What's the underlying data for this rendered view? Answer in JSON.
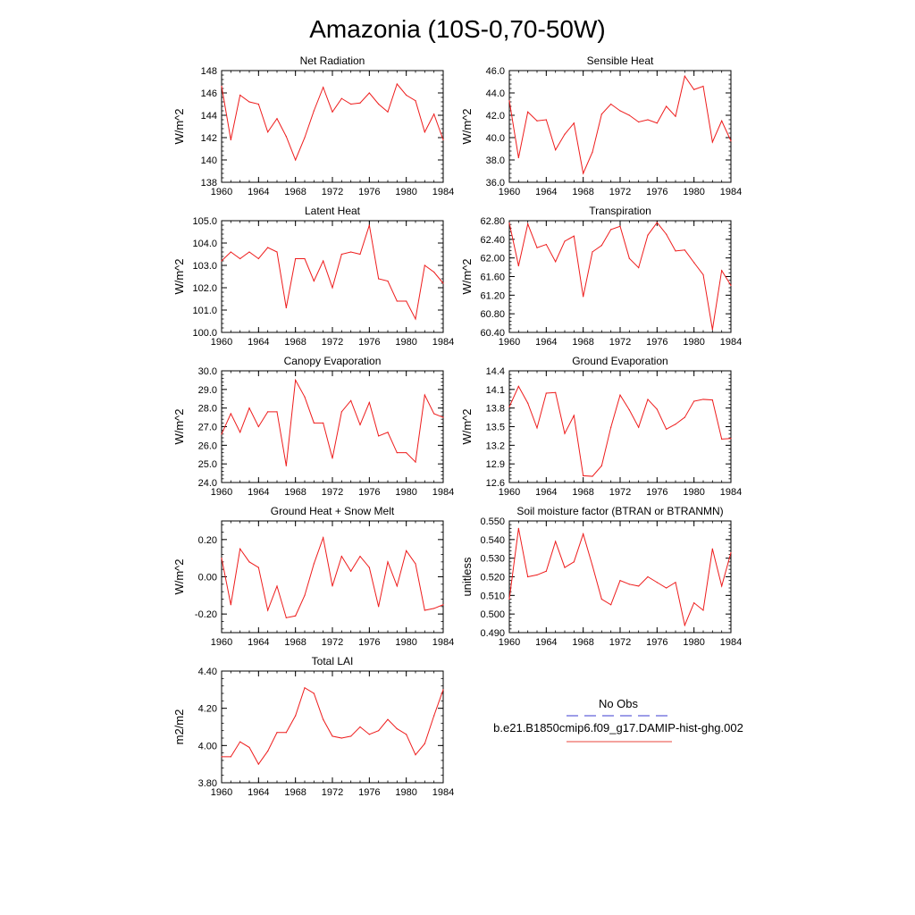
{
  "figure": {
    "title": "Amazonia (10S-0,70-50W)"
  },
  "legend": {
    "obs_label": "No Obs",
    "obs_color": "#3b3bd0",
    "model_label": "b.e21.B1850cmip6.f09_g17.DAMIP-hist-ghg.002",
    "model_color": "#e8463c"
  },
  "series_color": "#ee1c1c",
  "chart_data": [
    {
      "type": "line",
      "title": "Net Radiation",
      "ylabel": "W/m^2",
      "xlim": [
        1960,
        1984
      ],
      "ylim": [
        138,
        148
      ],
      "yticks": [
        138,
        140,
        142,
        144,
        146,
        148
      ],
      "ytick_labels": [
        "138",
        "140",
        "142",
        "144",
        "146",
        "148"
      ],
      "xticks": [
        1960,
        1964,
        1968,
        1972,
        1976,
        1980,
        1984
      ],
      "xtick_labels": [
        "1960",
        "1964",
        "1968",
        "1972",
        "1976",
        "1980",
        "1984"
      ],
      "x": [
        1960,
        1961,
        1962,
        1963,
        1964,
        1965,
        1966,
        1967,
        1968,
        1969,
        1970,
        1971,
        1972,
        1973,
        1974,
        1975,
        1976,
        1977,
        1978,
        1979,
        1980,
        1981,
        1982,
        1983,
        1984
      ],
      "values": [
        146.6,
        141.8,
        145.8,
        145.2,
        145.0,
        142.5,
        143.7,
        142.1,
        140.0,
        142.0,
        144.4,
        146.5,
        144.3,
        145.5,
        145.0,
        145.1,
        146.0,
        145.0,
        144.3,
        146.8,
        145.8,
        145.3,
        142.5,
        144.1,
        141.8
      ]
    },
    {
      "type": "line",
      "title": "Sensible Heat",
      "ylabel": "W/m^2",
      "xlim": [
        1960,
        1984
      ],
      "ylim": [
        36.0,
        46.0
      ],
      "yticks": [
        36,
        38,
        40,
        42,
        44,
        46
      ],
      "ytick_labels": [
        "36.0",
        "38.0",
        "40.0",
        "42.0",
        "44.0",
        "46.0"
      ],
      "xticks": [
        1960,
        1964,
        1968,
        1972,
        1976,
        1980,
        1984
      ],
      "xtick_labels": [
        "1960",
        "1964",
        "1968",
        "1972",
        "1976",
        "1980",
        "1984"
      ],
      "x": [
        1960,
        1961,
        1962,
        1963,
        1964,
        1965,
        1966,
        1967,
        1968,
        1969,
        1970,
        1971,
        1972,
        1973,
        1974,
        1975,
        1976,
        1977,
        1978,
        1979,
        1980,
        1981,
        1982,
        1983,
        1984
      ],
      "values": [
        43.3,
        38.2,
        42.3,
        41.5,
        41.6,
        38.9,
        40.3,
        41.3,
        36.8,
        38.7,
        42.1,
        43.0,
        42.4,
        42.0,
        41.4,
        41.6,
        41.3,
        42.8,
        41.9,
        45.5,
        44.3,
        44.6,
        39.6,
        41.5,
        39.7
      ]
    },
    {
      "type": "line",
      "title": "Latent Heat",
      "ylabel": "W/m^2",
      "xlim": [
        1960,
        1984
      ],
      "ylim": [
        100.0,
        105.0
      ],
      "yticks": [
        100,
        101,
        102,
        103,
        104,
        105
      ],
      "ytick_labels": [
        "100.0",
        "101.0",
        "102.0",
        "103.0",
        "104.0",
        "105.0"
      ],
      "xticks": [
        1960,
        1964,
        1968,
        1972,
        1976,
        1980,
        1984
      ],
      "xtick_labels": [
        "1960",
        "1964",
        "1968",
        "1972",
        "1976",
        "1980",
        "1984"
      ],
      "x": [
        1960,
        1961,
        1962,
        1963,
        1964,
        1965,
        1966,
        1967,
        1968,
        1969,
        1970,
        1971,
        1972,
        1973,
        1974,
        1975,
        1976,
        1977,
        1978,
        1979,
        1980,
        1981,
        1982,
        1983,
        1984
      ],
      "values": [
        103.2,
        103.6,
        103.3,
        103.6,
        103.3,
        103.8,
        103.6,
        101.1,
        103.3,
        103.3,
        102.3,
        103.2,
        102.0,
        103.5,
        103.6,
        103.5,
        104.8,
        102.4,
        102.3,
        101.4,
        101.4,
        100.6,
        103.0,
        102.7,
        102.2
      ]
    },
    {
      "type": "line",
      "title": "Transpiration",
      "ylabel": "W/m^2",
      "xlim": [
        1960,
        1984
      ],
      "ylim": [
        60.4,
        62.8
      ],
      "yticks": [
        60.4,
        60.8,
        61.2,
        61.6,
        62.0,
        62.4,
        62.8
      ],
      "ytick_labels": [
        "60.40",
        "60.80",
        "61.20",
        "61.60",
        "62.00",
        "62.40",
        "62.80"
      ],
      "xticks": [
        1960,
        1964,
        1968,
        1972,
        1976,
        1980,
        1984
      ],
      "xtick_labels": [
        "1960",
        "1964",
        "1968",
        "1972",
        "1976",
        "1980",
        "1984"
      ],
      "x": [
        1960,
        1961,
        1962,
        1963,
        1964,
        1965,
        1966,
        1967,
        1968,
        1969,
        1970,
        1971,
        1972,
        1973,
        1974,
        1975,
        1976,
        1977,
        1978,
        1979,
        1980,
        1981,
        1982,
        1983,
        1984
      ],
      "values": [
        62.75,
        61.83,
        62.73,
        62.22,
        62.29,
        61.92,
        62.36,
        62.47,
        61.17,
        62.13,
        62.27,
        62.61,
        62.68,
        61.99,
        61.79,
        62.49,
        62.76,
        62.51,
        62.15,
        62.17,
        61.9,
        61.64,
        60.46,
        61.73,
        61.41
      ]
    },
    {
      "type": "line",
      "title": "Canopy Evaporation",
      "ylabel": "W/m^2",
      "xlim": [
        1960,
        1984
      ],
      "ylim": [
        24.0,
        30.0
      ],
      "yticks": [
        24,
        25,
        26,
        27,
        28,
        29,
        30
      ],
      "ytick_labels": [
        "24.0",
        "25.0",
        "26.0",
        "27.0",
        "28.0",
        "29.0",
        "30.0"
      ],
      "xticks": [
        1960,
        1964,
        1968,
        1972,
        1976,
        1980,
        1984
      ],
      "xtick_labels": [
        "1960",
        "1964",
        "1968",
        "1972",
        "1976",
        "1980",
        "1984"
      ],
      "x": [
        1960,
        1961,
        1962,
        1963,
        1964,
        1965,
        1966,
        1967,
        1968,
        1969,
        1970,
        1971,
        1972,
        1973,
        1974,
        1975,
        1976,
        1977,
        1978,
        1979,
        1980,
        1981,
        1982,
        1983,
        1984
      ],
      "values": [
        26.6,
        27.7,
        26.7,
        28.0,
        27.0,
        27.8,
        27.8,
        24.9,
        29.5,
        28.6,
        27.2,
        27.2,
        25.3,
        27.8,
        28.4,
        27.1,
        28.3,
        26.5,
        26.7,
        25.6,
        25.6,
        25.1,
        28.7,
        27.7,
        27.5
      ]
    },
    {
      "type": "line",
      "title": "Ground Evaporation",
      "ylabel": "W/m^2",
      "xlim": [
        1960,
        1984
      ],
      "ylim": [
        12.6,
        14.4
      ],
      "yticks": [
        12.6,
        12.9,
        13.2,
        13.5,
        13.8,
        14.1,
        14.4
      ],
      "ytick_labels": [
        "12.6",
        "12.9",
        "13.2",
        "13.5",
        "13.8",
        "14.1",
        "14.4"
      ],
      "xticks": [
        1960,
        1964,
        1968,
        1972,
        1976,
        1980,
        1984
      ],
      "xtick_labels": [
        "1960",
        "1964",
        "1968",
        "1972",
        "1976",
        "1980",
        "1984"
      ],
      "x": [
        1960,
        1961,
        1962,
        1963,
        1964,
        1965,
        1966,
        1967,
        1968,
        1969,
        1970,
        1971,
        1972,
        1973,
        1974,
        1975,
        1976,
        1977,
        1978,
        1979,
        1980,
        1981,
        1982,
        1983,
        1984
      ],
      "values": [
        13.82,
        14.15,
        13.88,
        13.48,
        14.04,
        14.05,
        13.39,
        13.68,
        12.71,
        12.7,
        12.87,
        13.49,
        14.01,
        13.77,
        13.49,
        13.94,
        13.78,
        13.46,
        13.54,
        13.65,
        13.91,
        13.94,
        13.93,
        13.3,
        13.31
      ]
    },
    {
      "type": "line",
      "title": "Ground Heat + Snow Melt",
      "ylabel": "W/m^2",
      "xlim": [
        1960,
        1984
      ],
      "ylim": [
        -0.3,
        0.3
      ],
      "yticks": [
        -0.2,
        0.0,
        0.2
      ],
      "ytick_labels": [
        "-0.20",
        "0.00",
        "0.20"
      ],
      "xticks": [
        1960,
        1964,
        1968,
        1972,
        1976,
        1980,
        1984
      ],
      "xtick_labels": [
        "1960",
        "1964",
        "1968",
        "1972",
        "1976",
        "1980",
        "1984"
      ],
      "x": [
        1960,
        1961,
        1962,
        1963,
        1964,
        1965,
        1966,
        1967,
        1968,
        1969,
        1970,
        1971,
        1972,
        1973,
        1974,
        1975,
        1976,
        1977,
        1978,
        1979,
        1980,
        1981,
        1982,
        1983,
        1984
      ],
      "values": [
        0.1,
        -0.15,
        0.15,
        0.08,
        0.05,
        -0.18,
        -0.05,
        -0.22,
        -0.21,
        -0.1,
        0.07,
        0.21,
        -0.05,
        0.11,
        0.03,
        0.11,
        0.05,
        -0.16,
        0.08,
        -0.05,
        0.14,
        0.07,
        -0.18,
        -0.17,
        -0.15
      ]
    },
    {
      "type": "line",
      "title": "Soil moisture factor (BTRAN or BTRANMN)",
      "ylabel": "unitless",
      "xlim": [
        1960,
        1984
      ],
      "ylim": [
        0.49,
        0.55
      ],
      "yticks": [
        0.49,
        0.5,
        0.51,
        0.52,
        0.53,
        0.54,
        0.55
      ],
      "ytick_labels": [
        "0.490",
        "0.500",
        "0.510",
        "0.520",
        "0.530",
        "0.540",
        "0.550"
      ],
      "xticks": [
        1960,
        1964,
        1968,
        1972,
        1976,
        1980,
        1984
      ],
      "xtick_labels": [
        "1960",
        "1964",
        "1968",
        "1972",
        "1976",
        "1980",
        "1984"
      ],
      "x": [
        1960,
        1961,
        1962,
        1963,
        1964,
        1965,
        1966,
        1967,
        1968,
        1969,
        1970,
        1971,
        1972,
        1973,
        1974,
        1975,
        1976,
        1977,
        1978,
        1979,
        1980,
        1981,
        1982,
        1983,
        1984
      ],
      "values": [
        0.508,
        0.546,
        0.52,
        0.521,
        0.523,
        0.539,
        0.525,
        0.528,
        0.543,
        0.526,
        0.508,
        0.505,
        0.518,
        0.516,
        0.515,
        0.52,
        0.517,
        0.514,
        0.517,
        0.494,
        0.506,
        0.502,
        0.535,
        0.515,
        0.533
      ]
    },
    {
      "type": "line",
      "title": "Total LAI",
      "ylabel": "m2/m2",
      "xlim": [
        1960,
        1984
      ],
      "ylim": [
        3.8,
        4.4
      ],
      "yticks": [
        3.8,
        4.0,
        4.2,
        4.4
      ],
      "ytick_labels": [
        "3.80",
        "4.00",
        "4.20",
        "4.40"
      ],
      "xticks": [
        1960,
        1964,
        1968,
        1972,
        1976,
        1980,
        1984
      ],
      "xtick_labels": [
        "1960",
        "1964",
        "1968",
        "1972",
        "1976",
        "1980",
        "1984"
      ],
      "x": [
        1960,
        1961,
        1962,
        1963,
        1964,
        1965,
        1966,
        1967,
        1968,
        1969,
        1970,
        1971,
        1972,
        1973,
        1974,
        1975,
        1976,
        1977,
        1978,
        1979,
        1980,
        1981,
        1982,
        1983,
        1984
      ],
      "values": [
        3.94,
        3.94,
        4.02,
        3.99,
        3.9,
        3.97,
        4.07,
        4.07,
        4.16,
        4.31,
        4.28,
        4.14,
        4.05,
        4.04,
        4.05,
        4.1,
        4.06,
        4.08,
        4.14,
        4.09,
        4.06,
        3.95,
        4.01,
        4.16,
        4.3
      ]
    }
  ]
}
